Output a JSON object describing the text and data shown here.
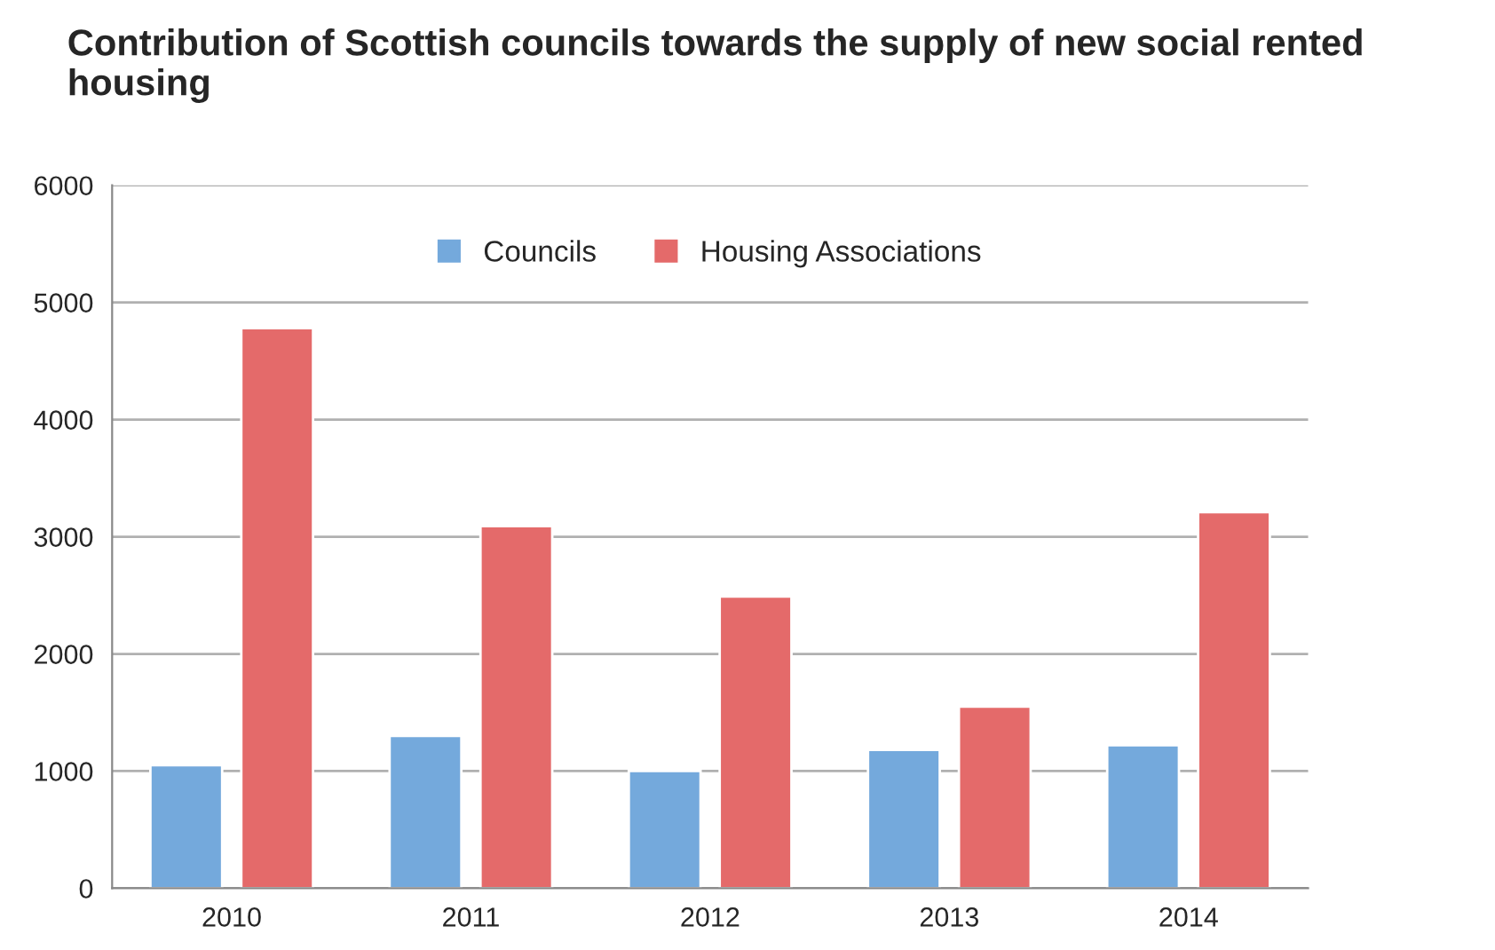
{
  "chart_data": {
    "type": "bar",
    "title": "Contribution of Scottish councils towards the supply of new social rented housing",
    "categories": [
      "2010",
      "2011",
      "2012",
      "2013",
      "2014"
    ],
    "series": [
      {
        "name": "Councils",
        "color": "#74a9dc",
        "values": [
          1050,
          1300,
          1000,
          1180,
          1220
        ]
      },
      {
        "name": "Housing Associations",
        "color": "#e46a6a",
        "values": [
          4780,
          3090,
          2490,
          1550,
          3210
        ]
      }
    ],
    "ylim": [
      0,
      6000
    ],
    "yticks": [
      0,
      1000,
      2000,
      3000,
      4000,
      5000,
      6000
    ],
    "grid": "y",
    "legend": "top"
  }
}
